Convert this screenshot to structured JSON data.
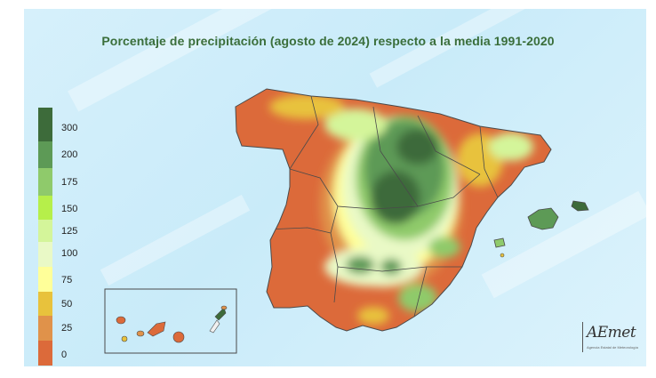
{
  "title": "Porcentaje de precipitación (agosto de 2024) respecto a la media 1991-2020",
  "legend": {
    "ticks": [
      "300",
      "200",
      "175",
      "150",
      "125",
      "100",
      "75",
      "50",
      "25",
      "0"
    ],
    "colors": [
      "#3d6b3a",
      "#5d9a56",
      "#8fca6b",
      "#b6ef4a",
      "#d4f59a",
      "#e9f9c6",
      "#ffff99",
      "#e8c23c",
      "#e0924a",
      "#dc6a3a"
    ]
  },
  "palette": {
    "driest": "#dc6a3a",
    "dry": "#e0924a",
    "below": "#e8c23c",
    "near": "#ffff99",
    "above": "#e9f9c6",
    "wet": "#d4f59a",
    "very_wet": "#8fca6b",
    "wettest": "#3d6b3a",
    "sea": "#cdeefa",
    "border": "#4a4a4a"
  },
  "logo": {
    "brand": "AEmet",
    "subtitle": "Agencia Estatal de Meteorología"
  }
}
